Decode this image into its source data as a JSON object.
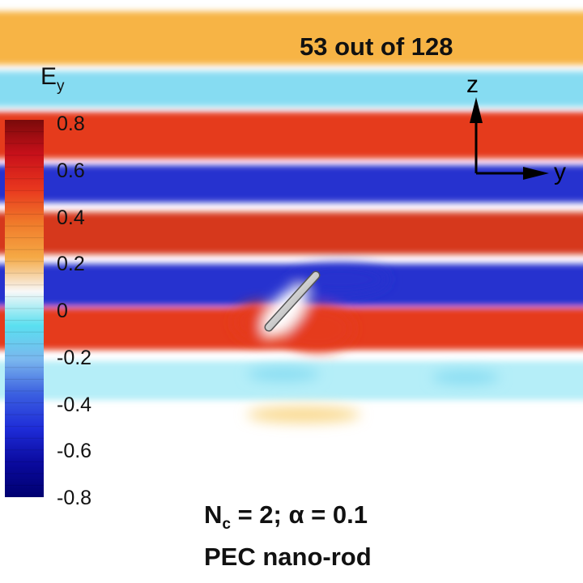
{
  "frame_counter": "53  out of 128",
  "legend": {
    "symbol": "E",
    "subscript": "y",
    "ticks": [
      "0.8",
      "0.6",
      "0.4",
      "0.2",
      "0",
      "-0.2",
      "-0.4",
      "-0.6",
      "-0.8"
    ],
    "colors": [
      "#7a0a0a",
      "#c8101a",
      "#e8361e",
      "#f07a2a",
      "#f5a945",
      "#f8f8f8",
      "#5ae0f0",
      "#7ab6ee",
      "#3b5fe0",
      "#1e2cd8",
      "#0a0a9e",
      "#000070"
    ]
  },
  "axes": {
    "vertical": "z",
    "horizontal": "y"
  },
  "caption": {
    "line1_symbol": "N",
    "line1_subscript": "c",
    "line1_rest": " = 2; α = 0.1",
    "line2": "PEC nano-rod"
  },
  "field_palette": {
    "orange": "#f7b444",
    "cyan": "#86dcf2",
    "red": "#e53a1f",
    "blue": "#2730cf",
    "darkred": "#d6381c",
    "lightcyan": "#b5eef8",
    "paleorange": "#f9d98e"
  }
}
